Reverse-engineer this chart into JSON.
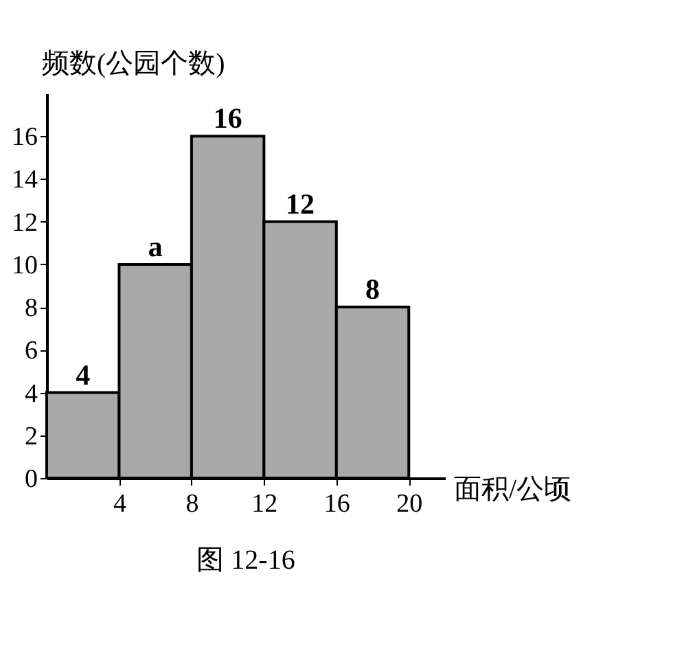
{
  "chart_data": {
    "type": "histogram",
    "bins": [
      0,
      4,
      8,
      12,
      16,
      20
    ],
    "values": [
      4,
      10,
      16,
      12,
      8
    ],
    "value_labels": [
      "4",
      "a",
      "16",
      "12",
      "8"
    ],
    "color": "#a9a9a9",
    "xlim": [
      0,
      22
    ],
    "xticks": [
      4,
      8,
      12,
      16,
      20
    ],
    "ylim": [
      0,
      18
    ],
    "yticks": [
      0,
      2,
      4,
      6,
      8,
      10,
      12,
      14,
      16
    ],
    "xlabel": "面积/公顷",
    "ylabel": "频数(公园个数)",
    "grid": false,
    "annotations": [
      "图 12-16"
    ]
  }
}
